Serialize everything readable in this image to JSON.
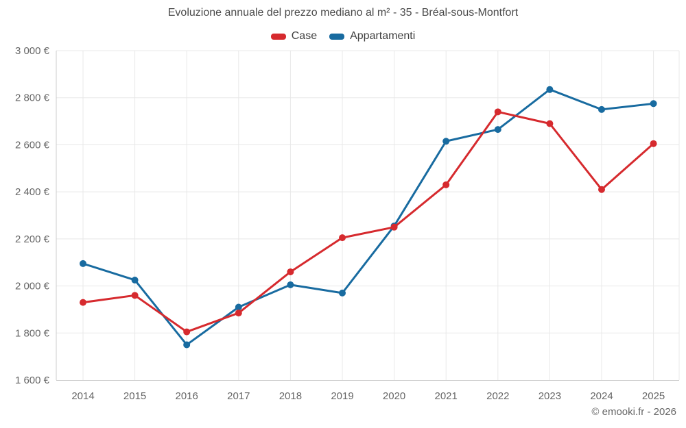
{
  "chart_data": {
    "type": "line",
    "title": "Evoluzione annuale del prezzo mediano al m² - 35 - Bréal-sous-Montfort",
    "categories": [
      "2014",
      "2015",
      "2016",
      "2017",
      "2018",
      "2019",
      "2020",
      "2021",
      "2022",
      "2023",
      "2024",
      "2025"
    ],
    "series": [
      {
        "name": "Case",
        "color": "#d62a2e",
        "values": [
          1930,
          1960,
          1805,
          1885,
          2060,
          2205,
          2250,
          2430,
          2740,
          2690,
          2410,
          2605
        ]
      },
      {
        "name": "Appartamenti",
        "color": "#186ba0",
        "values": [
          2095,
          2025,
          1750,
          1910,
          2005,
          1970,
          2255,
          2615,
          2665,
          2835,
          2750,
          2775
        ]
      }
    ],
    "xlabel": "",
    "ylabel": "",
    "ylim": [
      1600,
      3000
    ],
    "ytick_step": 200,
    "ytick_labels": [
      "1 600 €",
      "1 800 €",
      "2 000 €",
      "2 200 €",
      "2 400 €",
      "2 600 €",
      "2 800 €",
      "3 000 €"
    ],
    "grid": true,
    "legend_position": "top-center"
  },
  "colors": {
    "grid": "#e8e8e8",
    "axis": "#cccccc",
    "tick_label": "#666666",
    "title": "#4a4a4a",
    "legend_label": "#404040",
    "footer": "#666666",
    "background": "#ffffff"
  },
  "footer": {
    "text": "© emooki.fr - 2026"
  }
}
